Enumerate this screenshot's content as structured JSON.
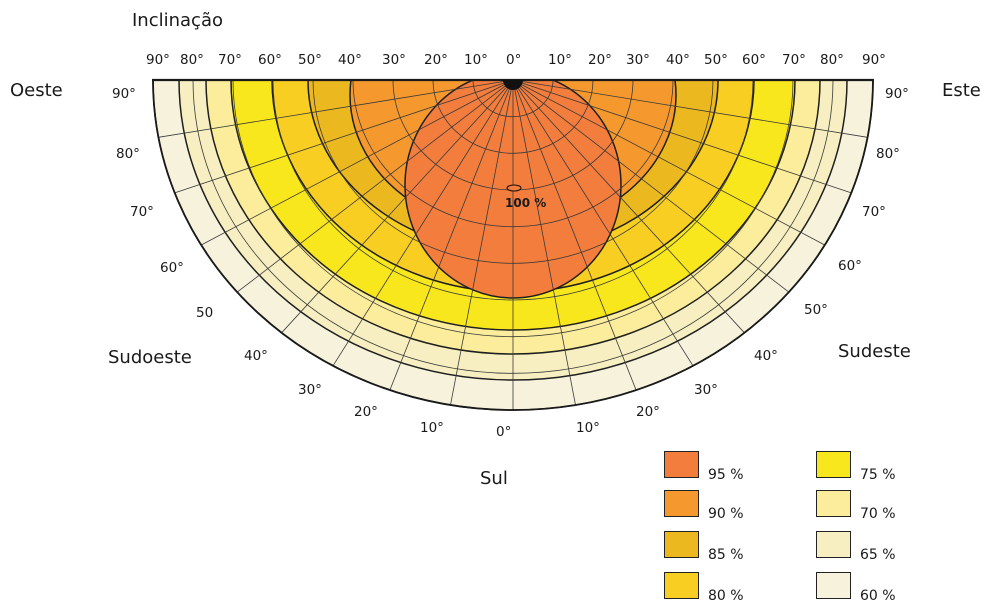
{
  "title": "Inclinação",
  "directions": {
    "west": "Oeste",
    "east": "Este",
    "south": "Sul",
    "southwest": "Sudoeste",
    "southeast": "Sudeste"
  },
  "center_label": "100 %",
  "top_ticks": [
    "90°",
    "80°",
    "70°",
    "60°",
    "50°",
    "40°",
    "30°",
    "20°",
    "10°",
    "0°",
    "10°",
    "20°",
    "30°",
    "40°",
    "50°",
    "60°",
    "70°",
    "80°",
    "90°"
  ],
  "left_ticks": [
    "90°",
    "80°",
    "70°",
    "60°",
    "50",
    "40°",
    "30°",
    "20°",
    "10°"
  ],
  "right_ticks": [
    "90°",
    "80°",
    "70°",
    "60°",
    "50°",
    "40°",
    "30°",
    "20°",
    "10°"
  ],
  "bottom_tick": "0°",
  "legend": [
    {
      "label": "95 %",
      "color": "#f37d3c"
    },
    {
      "label": "90 %",
      "color": "#f5992e"
    },
    {
      "label": "85 %",
      "color": "#ecb81f"
    },
    {
      "label": "80 %",
      "color": "#f8ce22"
    },
    {
      "label": "75 %",
      "color": "#f8e71c"
    },
    {
      "label": "70 %",
      "color": "#fbed9b"
    },
    {
      "label": "65 %",
      "color": "#f7efc1"
    },
    {
      "label": "60 %",
      "color": "#f6f2dc"
    }
  ]
}
